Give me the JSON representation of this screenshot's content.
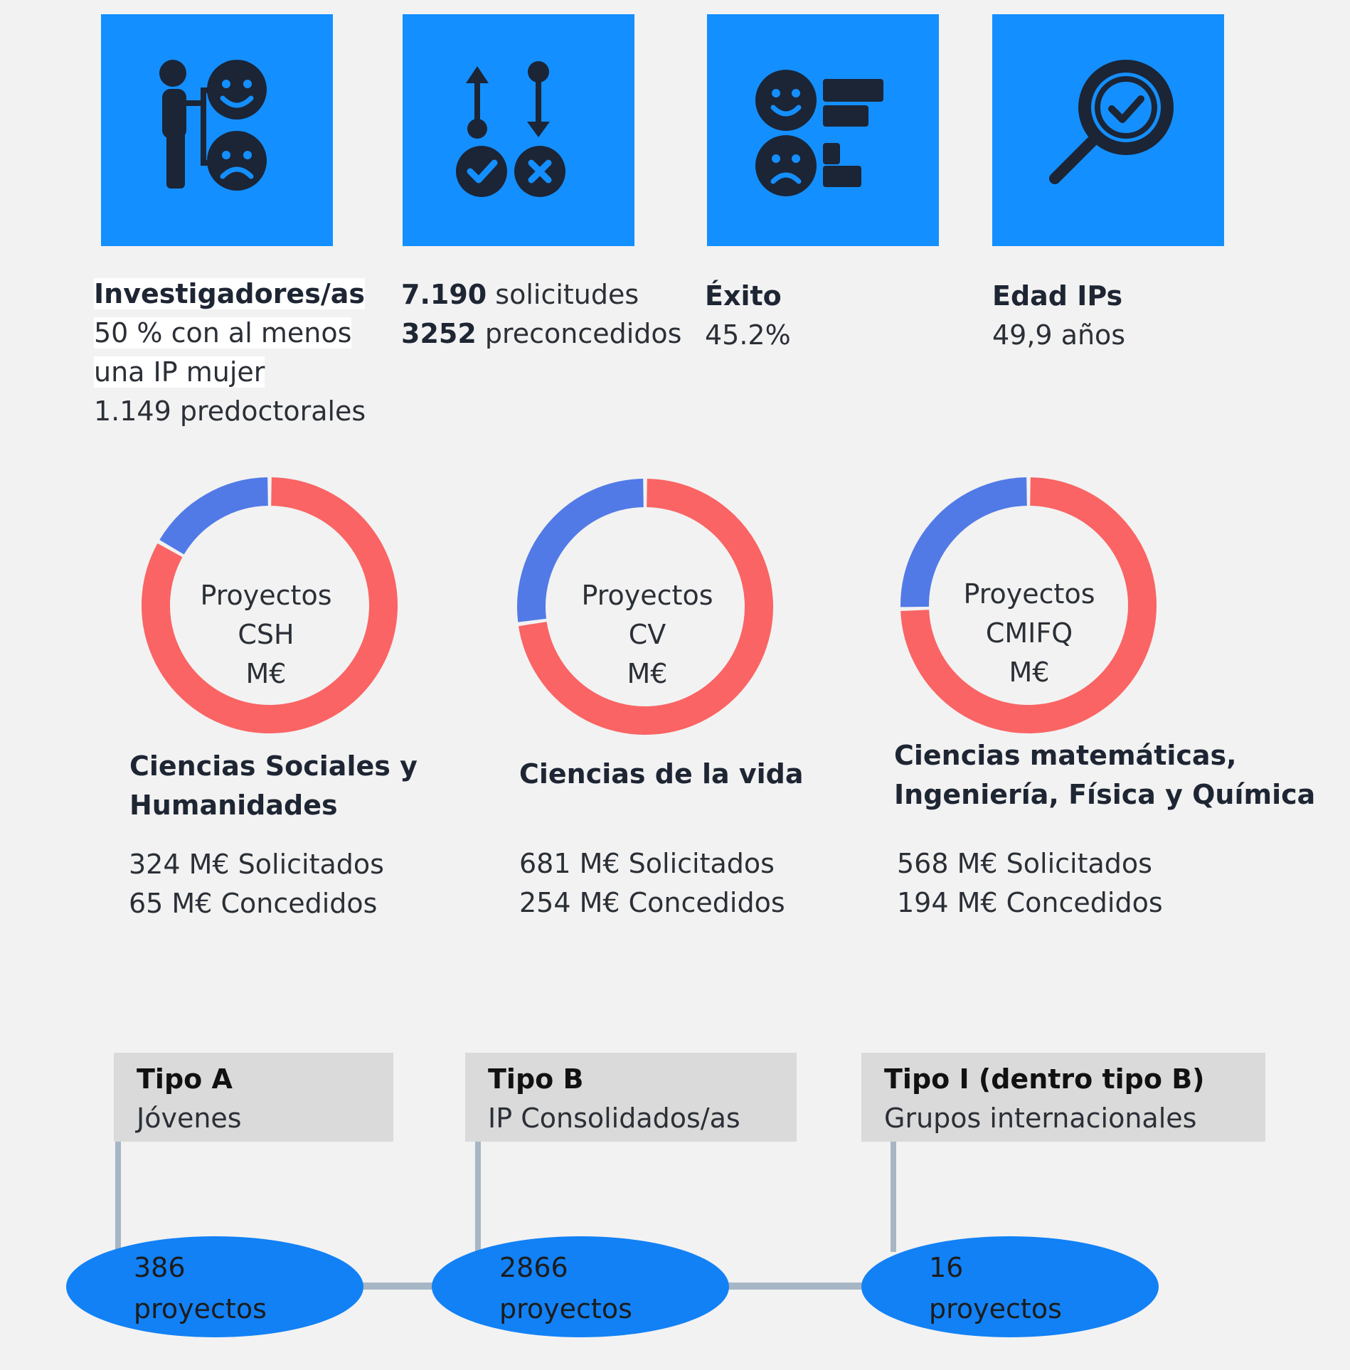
{
  "tiles": [
    {
      "icon": "researcher-feedback-icon",
      "title": "Investigadores/as",
      "lines": [
        "50 % con al menos",
        "una IP mujer",
        "1.149 predoctorales"
      ]
    },
    {
      "icon": "approve-reject-icon",
      "line1_bold": "7.190",
      "line1_rest": " solicitudes",
      "line2_bold": "3252",
      "line2_rest": " preconcedidos"
    },
    {
      "icon": "success-rating-icon",
      "title": "Éxito",
      "value": "45.2%"
    },
    {
      "icon": "magnifier-check-icon",
      "title": "Edad IPs",
      "value": "49,9 años"
    }
  ],
  "colors": {
    "tile": "#148fff",
    "concedido": "#1281f5",
    "red": "#fa6464",
    "blue": "#517ae6"
  },
  "chart_data": [
    {
      "type": "pie",
      "center_label": [
        "Proyectos",
        "CSH",
        "M€"
      ],
      "title": "Ciencias Sociales y Humanidades",
      "lines": [
        "324 M€ Solicitados",
        "65 M€ Concedidos"
      ],
      "slices": [
        {
          "label": "Concedidos",
          "value": 65
        },
        {
          "label": "Solicitados",
          "value": 324
        }
      ]
    },
    {
      "type": "pie",
      "center_label": [
        "Proyectos",
        "CV",
        "M€"
      ],
      "title": "Ciencias de la vida",
      "lines": [
        "681 M€ Solicitados",
        "254 M€ Concedidos"
      ],
      "slices": [
        {
          "label": "Concedidos",
          "value": 254
        },
        {
          "label": "Solicitados",
          "value": 681
        }
      ]
    },
    {
      "type": "pie",
      "center_label": [
        "Proyectos",
        "CMIFQ",
        "M€"
      ],
      "title_lines": [
        "Ciencias matemáticas,",
        "Ingeniería, Física y Química"
      ],
      "lines": [
        "568 M€ Solicitados",
        "194 M€ Concedidos"
      ],
      "slices": [
        {
          "label": "Concedidos",
          "value": 194
        },
        {
          "label": "Solicitados",
          "value": 568
        }
      ]
    }
  ],
  "tipos": [
    {
      "name": "Tipo A",
      "desc": "Jóvenes",
      "count": "386",
      "unit": "proyectos"
    },
    {
      "name": "Tipo B",
      "desc": "IP Consolidados/as",
      "count": "2866",
      "unit": "proyectos"
    },
    {
      "name": "Tipo I (dentro tipo B)",
      "desc": "Grupos internacionales",
      "count": "16",
      "unit": "proyectos"
    }
  ]
}
